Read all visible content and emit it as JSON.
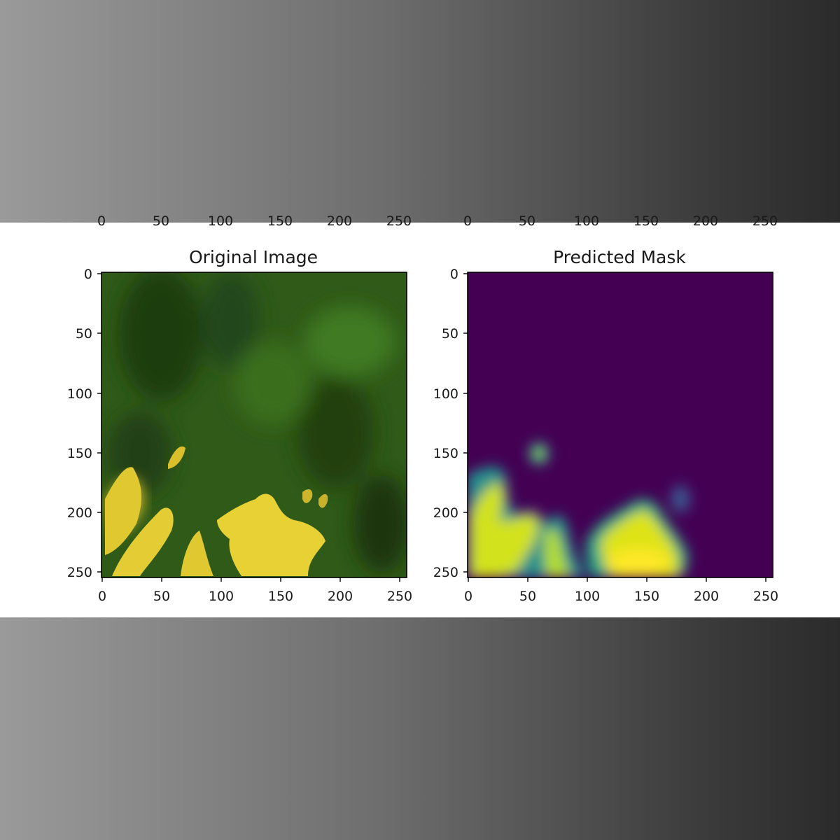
{
  "panels": [
    {
      "title": "Original Image",
      "xticks": [
        "0",
        "50",
        "100",
        "150",
        "200",
        "250"
      ],
      "yticks": [
        "0",
        "50",
        "100",
        "150",
        "200",
        "250"
      ],
      "extent": [
        0,
        256
      ],
      "colors": {
        "vegetation": "#2f5a18",
        "dark_vegetation": "#1f3d10",
        "snow": "#e6d032"
      }
    },
    {
      "title": "Predicted Mask",
      "xticks": [
        "0",
        "50",
        "100",
        "150",
        "200",
        "250"
      ],
      "yticks": [
        "0",
        "50",
        "100",
        "150",
        "200",
        "250"
      ],
      "extent": [
        0,
        256
      ],
      "colors": {
        "background": "#440154",
        "mid": "#21918c",
        "high": "#fde725"
      }
    }
  ],
  "clipped_top_ticks": [
    "0",
    "50",
    "100",
    "150",
    "200",
    "250",
    "0",
    "50",
    "100",
    "150",
    "200",
    "250"
  ]
}
